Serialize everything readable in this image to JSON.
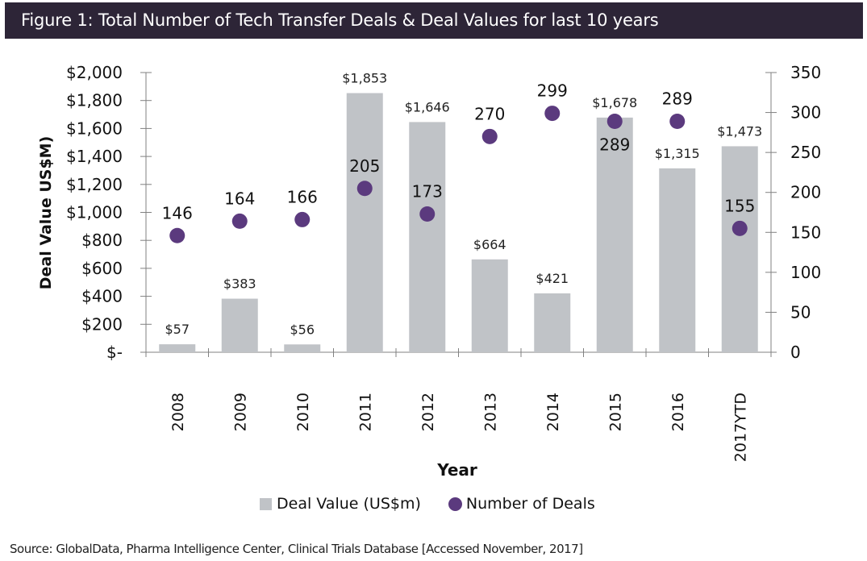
{
  "header": {
    "title": "Figure 1: Total Number of Tech Transfer Deals & Deal Values for last 10 years"
  },
  "footer": {
    "source": "Source: GlobalData, Pharma Intelligence Center, Clinical Trials Database [Accessed November, 2017]"
  },
  "colors": {
    "title_bg": "#2d2537",
    "bar": "#c0c3c7",
    "dot": "#5b3a7e",
    "axis": "#808080"
  },
  "chart_data": {
    "type": "bar",
    "title": "Figure 1: Total Number of Tech Transfer Deals & Deal Values for last 10 years",
    "xlabel": "Year",
    "ylabel": "Deal Value US$M)",
    "y2label": "",
    "categories": [
      "2008",
      "2009",
      "2010",
      "2011",
      "2012",
      "2013",
      "2014",
      "2015",
      "2016",
      "2017YTD"
    ],
    "series": [
      {
        "name": "Deal Value (US$m)",
        "type": "bar",
        "axis": "left",
        "values": [
          57,
          383,
          56,
          1853,
          1646,
          664,
          421,
          1678,
          1315,
          1473
        ],
        "labels": [
          "$57",
          "$383",
          "$56",
          "$1,853",
          "$1,646",
          "$664",
          "$421",
          "$1,678",
          "$1,315",
          "$1,473"
        ]
      },
      {
        "name": "Number of Deals",
        "type": "scatter",
        "axis": "right",
        "values": [
          146,
          164,
          166,
          205,
          173,
          270,
          299,
          289,
          289,
          155
        ],
        "labels": [
          "146",
          "164",
          "166",
          "205",
          "173",
          "270",
          "299",
          "289",
          "289",
          "155"
        ],
        "label_position": [
          "above",
          "above",
          "above",
          "above",
          "above",
          "above",
          "above",
          "below",
          "above",
          "above"
        ]
      }
    ],
    "ylim": [
      0,
      2000
    ],
    "y2lim": [
      0,
      350
    ],
    "yticks": [
      "$-",
      "$200",
      "$400",
      "$600",
      "$800",
      "$1,000",
      "$1,200",
      "$1,400",
      "$1,600",
      "$1,800",
      "$2,000"
    ],
    "y2ticks": [
      "0",
      "50",
      "100",
      "150",
      "200",
      "250",
      "300",
      "350"
    ],
    "grid": false,
    "legend": "bottom",
    "legend_entries": [
      "Deal Value (US$m)",
      "Number of Deals"
    ]
  }
}
